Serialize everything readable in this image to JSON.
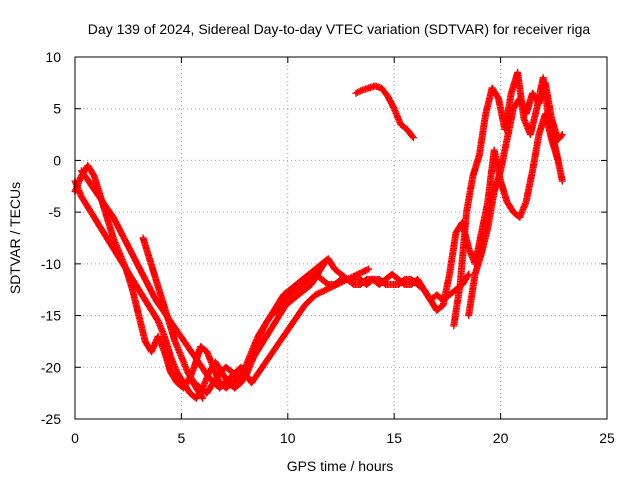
{
  "chart_data": {
    "type": "scatter",
    "title": "Day 139 of 2024, Sidereal Day-to-day VTEC variation (SDTVAR) for receiver riga",
    "xlabel": "GPS time / hours",
    "ylabel": "SDTVAR / TECUs",
    "xlim": [
      0,
      25
    ],
    "ylim": [
      -25,
      10
    ],
    "xticks": [
      0,
      5,
      10,
      15,
      20,
      25
    ],
    "yticks": [
      -25,
      -20,
      -15,
      -10,
      -5,
      0,
      5,
      10
    ],
    "grid": true,
    "marker": "+",
    "color": "#ff0000",
    "series": [
      {
        "x": [
          0.0,
          0.3,
          0.6,
          0.9,
          1.2,
          1.5,
          1.8,
          2.1,
          2.4,
          2.7,
          3.0,
          3.3,
          3.6,
          3.9,
          4.2,
          4.5,
          4.8,
          5.1,
          5.4,
          5.7,
          6.0
        ],
        "y": [
          -3.0,
          -1.5,
          -0.5,
          -1.5,
          -3.5,
          -5.5,
          -7.5,
          -9.0,
          -10.5,
          -12.5,
          -15.0,
          -17.5,
          -18.5,
          -17.0,
          -18.5,
          -20.5,
          -21.5,
          -22.0,
          -21.0,
          -22.0,
          -23.0
        ]
      },
      {
        "x": [
          0.0,
          0.3,
          0.6,
          0.9,
          1.2,
          1.5,
          1.8,
          2.1,
          2.4,
          2.7,
          3.0,
          3.3,
          3.6,
          3.9,
          4.2,
          4.5,
          4.8,
          5.1,
          5.4,
          5.7,
          6.0,
          6.3,
          6.6,
          6.9,
          7.2,
          7.5,
          7.8,
          8.1,
          8.4,
          8.7,
          9.0,
          9.3,
          9.6,
          9.9,
          10.2,
          10.5,
          10.8,
          11.1,
          11.4,
          11.7
        ],
        "y": [
          -2.0,
          -3.5,
          -4.5,
          -5.5,
          -6.5,
          -7.5,
          -8.5,
          -9.5,
          -10.5,
          -11.5,
          -12.5,
          -13.5,
          -14.5,
          -15.5,
          -17.0,
          -19.0,
          -20.5,
          -21.5,
          -22.5,
          -23.0,
          -22.0,
          -20.5,
          -19.5,
          -20.5,
          -21.5,
          -22.0,
          -21.5,
          -20.5,
          -19.0,
          -18.0,
          -17.0,
          -16.0,
          -15.0,
          -14.0,
          -13.5,
          -13.0,
          -12.5,
          -12.0,
          -11.0,
          -10.0
        ]
      },
      {
        "x": [
          0.3,
          0.8,
          1.3,
          1.8,
          2.3,
          2.8,
          3.3,
          3.8,
          4.3,
          4.8,
          5.3,
          5.8,
          6.3,
          6.8,
          7.3,
          7.8,
          8.3,
          8.8,
          9.3,
          9.8,
          10.3,
          10.8,
          11.3,
          11.8,
          12.3,
          12.8,
          13.3,
          13.8
        ],
        "y": [
          -1.0,
          -2.5,
          -4.0,
          -5.5,
          -7.5,
          -9.5,
          -11.5,
          -13.5,
          -15.0,
          -16.5,
          -18.0,
          -19.5,
          -21.0,
          -22.0,
          -21.0,
          -20.0,
          -21.5,
          -20.0,
          -18.5,
          -17.0,
          -15.5,
          -14.0,
          -13.0,
          -12.5,
          -12.0,
          -11.5,
          -11.0,
          -10.5
        ]
      },
      {
        "x": [
          3.2,
          3.5,
          3.8,
          4.1,
          4.4,
          4.7,
          5.0,
          5.3,
          5.6,
          5.9,
          6.2,
          6.5,
          6.8,
          7.1,
          7.4,
          7.7,
          8.0,
          8.3,
          8.6,
          8.9,
          9.2,
          9.5,
          9.8,
          10.1,
          10.4,
          10.7,
          11.0,
          11.3,
          11.6,
          11.9,
          12.2,
          12.5,
          12.8,
          13.1,
          13.4,
          13.7,
          14.0,
          14.3,
          14.6,
          14.9,
          15.2,
          15.5,
          15.8,
          16.1,
          16.4,
          16.7,
          17.0,
          17.3,
          17.6,
          17.9,
          18.2,
          18.5
        ],
        "y": [
          -7.5,
          -9.5,
          -11.5,
          -13.5,
          -15.5,
          -17.5,
          -19.0,
          -20.5,
          -21.5,
          -22.0,
          -22.5,
          -21.5,
          -20.5,
          -20.0,
          -20.5,
          -21.0,
          -20.5,
          -19.0,
          -17.5,
          -16.0,
          -15.0,
          -14.0,
          -13.0,
          -12.5,
          -12.0,
          -11.5,
          -11.0,
          -10.5,
          -10.0,
          -9.5,
          -10.5,
          -11.0,
          -11.5,
          -11.5,
          -11.5,
          -12.0,
          -11.5,
          -11.5,
          -12.0,
          -12.0,
          -12.0,
          -11.5,
          -11.5,
          -12.0,
          -12.5,
          -13.5,
          -13.0,
          -13.5,
          -13.0,
          -12.5,
          -12.0,
          -11.0
        ]
      },
      {
        "x": [
          5.3,
          5.6,
          5.9,
          6.2,
          6.5,
          6.8,
          7.1,
          7.4,
          7.7,
          8.0,
          8.3,
          8.6,
          8.9,
          9.2,
          9.5,
          9.8,
          10.1,
          10.4,
          10.7,
          11.0,
          11.3,
          11.6,
          11.9,
          12.2,
          12.5,
          12.8,
          13.1,
          13.4,
          13.7,
          14.0,
          14.3,
          14.6,
          14.9,
          15.2,
          15.5,
          15.8,
          16.1,
          16.4,
          16.7,
          17.0,
          17.3,
          17.6,
          17.9,
          18.2,
          18.5,
          18.8,
          19.1,
          19.4,
          19.7,
          20.0,
          20.3,
          20.6,
          20.9,
          21.2,
          21.5,
          21.8,
          22.1,
          22.4,
          22.7
        ],
        "y": [
          -21.5,
          -20.0,
          -18.0,
          -18.5,
          -20.0,
          -21.5,
          -22.0,
          -21.5,
          -21.0,
          -20.0,
          -18.5,
          -17.0,
          -16.0,
          -15.0,
          -14.5,
          -13.5,
          -13.0,
          -12.5,
          -12.0,
          -11.5,
          -11.0,
          -11.5,
          -12.0,
          -12.0,
          -11.5,
          -11.5,
          -12.0,
          -12.0,
          -11.5,
          -11.5,
          -12.0,
          -11.5,
          -11.0,
          -11.5,
          -12.0,
          -12.0,
          -11.5,
          -12.5,
          -13.5,
          -14.5,
          -14.0,
          -11.0,
          -7.0,
          -6.0,
          -8.5,
          -10.0,
          -7.0,
          -4.0,
          1.0,
          -2.0,
          -4.0,
          -5.0,
          -5.5,
          -4.0,
          -1.0,
          2.5,
          4.5,
          2.0,
          0.0
        ]
      },
      {
        "x": [
          13.2,
          13.5,
          13.8,
          14.1,
          14.4,
          14.7,
          15.0,
          15.3,
          15.6,
          15.9
        ],
        "y": [
          6.5,
          6.8,
          7.0,
          7.2,
          7.0,
          6.2,
          5.0,
          3.5,
          3.0,
          2.2
        ]
      },
      {
        "x": [
          17.8,
          18.1,
          18.4,
          18.7,
          19.0,
          19.3,
          19.6,
          19.9,
          20.2,
          20.5,
          20.8,
          21.1,
          21.4,
          21.7,
          22.0,
          22.3,
          22.6,
          22.9
        ],
        "y": [
          -16.0,
          -12.0,
          -5.0,
          -1.5,
          0.5,
          4.5,
          7.0,
          6.0,
          3.0,
          6.5,
          8.5,
          4.0,
          2.5,
          5.0,
          8.0,
          3.5,
          1.0,
          -2.0
        ]
      },
      {
        "x": [
          18.5,
          18.8,
          19.1,
          19.4,
          19.7,
          20.0,
          20.3,
          20.6,
          20.9,
          21.2,
          21.5,
          21.8,
          22.1,
          22.4,
          22.7,
          22.9
        ],
        "y": [
          -15.0,
          -11.0,
          -9.0,
          -6.5,
          -3.0,
          -1.0,
          2.0,
          5.0,
          6.0,
          4.5,
          6.5,
          5.5,
          7.5,
          4.0,
          2.0,
          2.5
        ]
      }
    ]
  }
}
